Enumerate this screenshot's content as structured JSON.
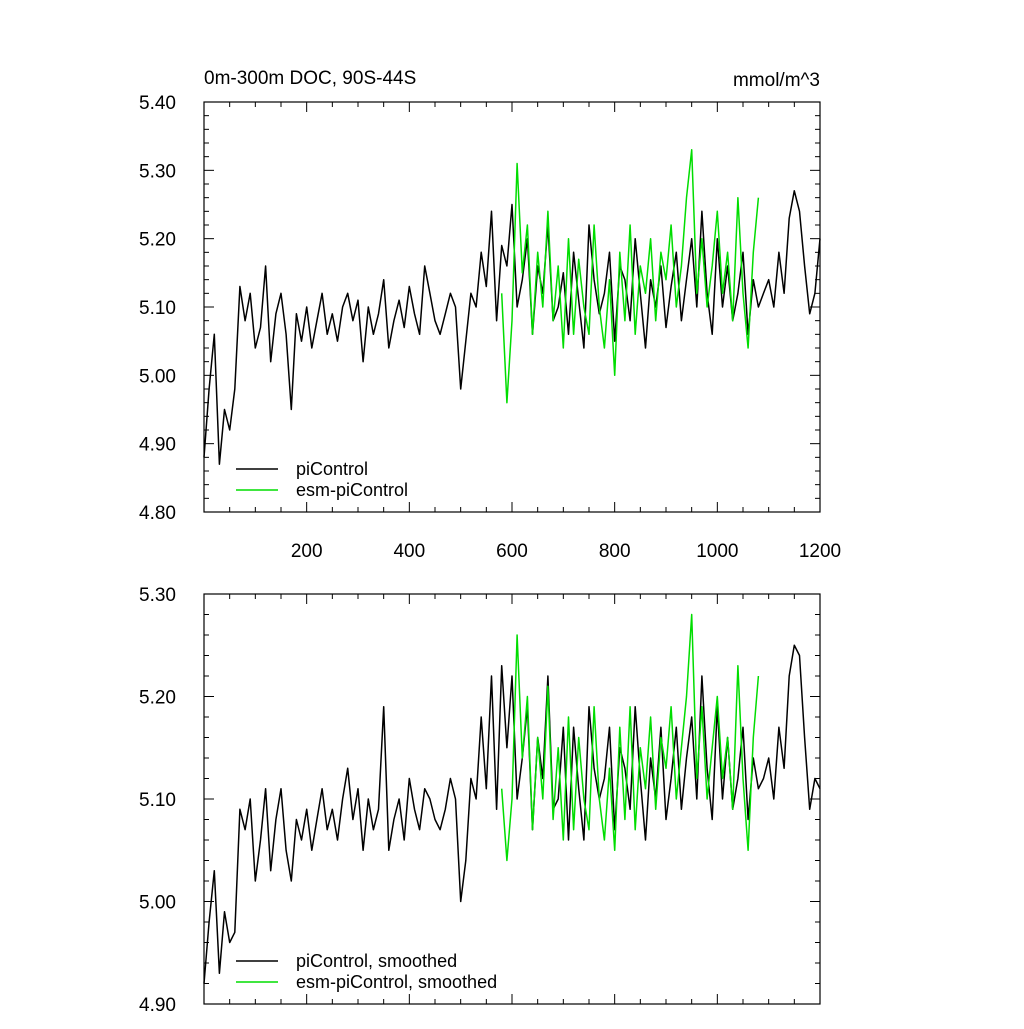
{
  "chart_data": [
    {
      "type": "line",
      "title": "0m-300m DOC, 90S-44S",
      "units": "mmol/m^3",
      "xlim": [
        0,
        1200
      ],
      "ylim": [
        4.8,
        5.4
      ],
      "xticks": [
        "200",
        "400",
        "600",
        "800",
        "1000",
        "1200"
      ],
      "yticks": [
        "4.80",
        "4.90",
        "5.00",
        "5.10",
        "5.20",
        "5.30",
        "5.40"
      ],
      "legend_position": "bottom-left",
      "series": [
        {
          "name": "piControl",
          "color": "#000000",
          "x": [
            0,
            10,
            20,
            30,
            40,
            50,
            60,
            70,
            80,
            90,
            100,
            110,
            120,
            130,
            140,
            150,
            160,
            170,
            180,
            190,
            200,
            210,
            220,
            230,
            240,
            250,
            260,
            270,
            280,
            290,
            300,
            310,
            320,
            330,
            340,
            350,
            360,
            370,
            380,
            390,
            400,
            410,
            420,
            430,
            440,
            450,
            460,
            470,
            480,
            490,
            500,
            510,
            520,
            530,
            540,
            550,
            560,
            570,
            580,
            590,
            600,
            610,
            620,
            630,
            640,
            650,
            660,
            670,
            680,
            690,
            700,
            710,
            720,
            730,
            740,
            750,
            760,
            770,
            780,
            790,
            800,
            810,
            820,
            830,
            840,
            850,
            860,
            870,
            880,
            890,
            900,
            910,
            920,
            930,
            940,
            950,
            960,
            970,
            980,
            990,
            1000,
            1010,
            1020,
            1030,
            1040,
            1050,
            1060,
            1070,
            1080,
            1090,
            1100,
            1110,
            1120,
            1130,
            1140,
            1150,
            1160,
            1170,
            1180,
            1190,
            1200
          ],
          "y": [
            4.88,
            4.98,
            5.06,
            4.87,
            4.95,
            4.92,
            4.98,
            5.13,
            5.08,
            5.12,
            5.04,
            5.07,
            5.16,
            5.02,
            5.09,
            5.12,
            5.06,
            4.95,
            5.09,
            5.05,
            5.1,
            5.04,
            5.08,
            5.12,
            5.06,
            5.09,
            5.05,
            5.1,
            5.12,
            5.08,
            5.11,
            5.02,
            5.1,
            5.06,
            5.09,
            5.14,
            5.04,
            5.08,
            5.11,
            5.07,
            5.13,
            5.09,
            5.06,
            5.16,
            5.12,
            5.08,
            5.06,
            5.09,
            5.12,
            5.1,
            4.98,
            5.05,
            5.12,
            5.1,
            5.18,
            5.13,
            5.24,
            5.08,
            5.19,
            5.16,
            5.25,
            5.1,
            5.14,
            5.2,
            5.06,
            5.16,
            5.12,
            5.22,
            5.08,
            5.1,
            5.15,
            5.06,
            5.18,
            5.11,
            5.04,
            5.22,
            5.14,
            5.09,
            5.12,
            5.18,
            5.05,
            5.16,
            5.14,
            5.08,
            5.2,
            5.12,
            5.04,
            5.14,
            5.1,
            5.16,
            5.07,
            5.13,
            5.18,
            5.08,
            5.14,
            5.2,
            5.1,
            5.24,
            5.12,
            5.06,
            5.2,
            5.1,
            5.16,
            5.08,
            5.12,
            5.18,
            5.06,
            5.14,
            5.1,
            5.12,
            5.14,
            5.1,
            5.18,
            5.12,
            5.23,
            5.27,
            5.24,
            5.16,
            5.09,
            5.12,
            5.2
          ]
        },
        {
          "name": "esm-piControl",
          "color": "#00dd00",
          "x": [
            580,
            590,
            600,
            610,
            620,
            630,
            640,
            650,
            660,
            670,
            680,
            690,
            700,
            710,
            720,
            730,
            740,
            750,
            760,
            770,
            780,
            790,
            800,
            810,
            820,
            830,
            840,
            850,
            860,
            870,
            880,
            890,
            900,
            910,
            920,
            930,
            940,
            950,
            960,
            970,
            980,
            990,
            1000,
            1010,
            1020,
            1030,
            1040,
            1050,
            1060,
            1070,
            1080
          ],
          "y": [
            5.12,
            4.96,
            5.08,
            5.31,
            5.15,
            5.22,
            5.06,
            5.18,
            5.1,
            5.24,
            5.08,
            5.16,
            5.04,
            5.2,
            5.06,
            5.17,
            5.1,
            5.06,
            5.22,
            5.1,
            5.04,
            5.14,
            5.0,
            5.18,
            5.08,
            5.22,
            5.06,
            5.16,
            5.12,
            5.2,
            5.08,
            5.18,
            5.14,
            5.22,
            5.1,
            5.16,
            5.26,
            5.33,
            5.12,
            5.2,
            5.1,
            5.16,
            5.24,
            5.12,
            5.18,
            5.08,
            5.26,
            5.12,
            5.04,
            5.18,
            5.26
          ]
        }
      ]
    },
    {
      "type": "line",
      "xlim": [
        0,
        1200
      ],
      "ylim": [
        4.9,
        5.3
      ],
      "yticks": [
        "4.90",
        "5.00",
        "5.10",
        "5.20",
        "5.30"
      ],
      "legend_position": "bottom-left",
      "series": [
        {
          "name": "piControl, smoothed",
          "color": "#000000",
          "x": [
            0,
            10,
            20,
            30,
            40,
            50,
            60,
            70,
            80,
            90,
            100,
            110,
            120,
            130,
            140,
            150,
            160,
            170,
            180,
            190,
            200,
            210,
            220,
            230,
            240,
            250,
            260,
            270,
            280,
            290,
            300,
            310,
            320,
            330,
            340,
            350,
            360,
            370,
            380,
            390,
            400,
            410,
            420,
            430,
            440,
            450,
            460,
            470,
            480,
            490,
            500,
            510,
            520,
            530,
            540,
            550,
            560,
            570,
            580,
            590,
            600,
            610,
            620,
            630,
            640,
            650,
            660,
            670,
            680,
            690,
            700,
            710,
            720,
            730,
            740,
            750,
            760,
            770,
            780,
            790,
            800,
            810,
            820,
            830,
            840,
            850,
            860,
            870,
            880,
            890,
            900,
            910,
            920,
            930,
            940,
            950,
            960,
            970,
            980,
            990,
            1000,
            1010,
            1020,
            1030,
            1040,
            1050,
            1060,
            1070,
            1080,
            1090,
            1100,
            1110,
            1120,
            1130,
            1140,
            1150,
            1160,
            1170,
            1180,
            1190,
            1200
          ],
          "y": [
            4.92,
            4.98,
            5.03,
            4.93,
            4.99,
            4.96,
            4.97,
            5.09,
            5.07,
            5.1,
            5.02,
            5.06,
            5.11,
            5.03,
            5.08,
            5.11,
            5.05,
            5.02,
            5.08,
            5.06,
            5.09,
            5.05,
            5.08,
            5.11,
            5.07,
            5.09,
            5.06,
            5.1,
            5.13,
            5.08,
            5.11,
            5.05,
            5.1,
            5.07,
            5.09,
            5.19,
            5.05,
            5.08,
            5.1,
            5.06,
            5.12,
            5.09,
            5.07,
            5.11,
            5.1,
            5.08,
            5.07,
            5.09,
            5.12,
            5.1,
            5.0,
            5.04,
            5.12,
            5.1,
            5.18,
            5.11,
            5.22,
            5.09,
            5.23,
            5.15,
            5.22,
            5.1,
            5.14,
            5.19,
            5.07,
            5.16,
            5.12,
            5.22,
            5.09,
            5.1,
            5.17,
            5.06,
            5.17,
            5.11,
            5.06,
            5.19,
            5.13,
            5.1,
            5.12,
            5.17,
            5.07,
            5.15,
            5.13,
            5.09,
            5.19,
            5.12,
            5.06,
            5.14,
            5.1,
            5.17,
            5.08,
            5.12,
            5.17,
            5.09,
            5.14,
            5.18,
            5.1,
            5.22,
            5.13,
            5.08,
            5.19,
            5.1,
            5.16,
            5.09,
            5.12,
            5.17,
            5.08,
            5.14,
            5.11,
            5.12,
            5.14,
            5.1,
            5.17,
            5.13,
            5.22,
            5.25,
            5.24,
            5.16,
            5.09,
            5.12,
            5.11
          ]
        },
        {
          "name": "esm-piControl, smoothed",
          "color": "#00dd00",
          "x": [
            580,
            590,
            600,
            610,
            620,
            630,
            640,
            650,
            660,
            670,
            680,
            690,
            700,
            710,
            720,
            730,
            740,
            750,
            760,
            770,
            780,
            790,
            800,
            810,
            820,
            830,
            840,
            850,
            860,
            870,
            880,
            890,
            900,
            910,
            920,
            930,
            940,
            950,
            960,
            970,
            980,
            990,
            1000,
            1010,
            1020,
            1030,
            1040,
            1050,
            1060,
            1070,
            1080
          ],
          "y": [
            5.11,
            5.04,
            5.1,
            5.26,
            5.14,
            5.2,
            5.07,
            5.16,
            5.1,
            5.21,
            5.08,
            5.15,
            5.06,
            5.18,
            5.07,
            5.16,
            5.1,
            5.07,
            5.19,
            5.1,
            5.06,
            5.13,
            5.05,
            5.17,
            5.08,
            5.19,
            5.07,
            5.15,
            5.11,
            5.18,
            5.09,
            5.16,
            5.13,
            5.19,
            5.1,
            5.15,
            5.2,
            5.28,
            5.12,
            5.19,
            5.1,
            5.15,
            5.2,
            5.12,
            5.16,
            5.09,
            5.23,
            5.12,
            5.05,
            5.16,
            5.22
          ]
        }
      ]
    }
  ]
}
